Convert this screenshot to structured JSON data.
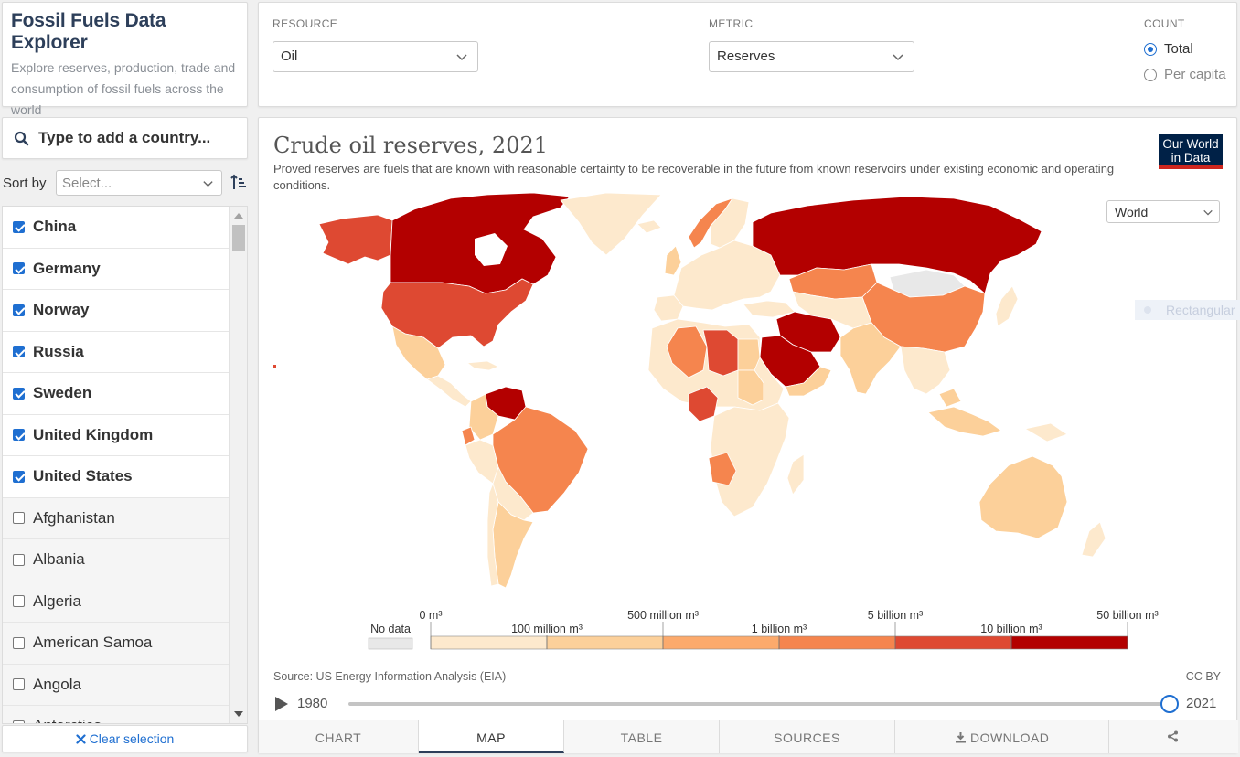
{
  "header": {
    "title": "Fossil Fuels Data Explorer",
    "subtitle": "Explore reserves, production, trade and consumption of fossil fuels across the world"
  },
  "controls": {
    "resource": {
      "label": "RESOURCE",
      "value": "Oil"
    },
    "metric": {
      "label": "METRIC",
      "value": "Reserves"
    },
    "count": {
      "label": "COUNT",
      "options": [
        "Total",
        "Per capita"
      ],
      "selected": "Total"
    }
  },
  "sidebar": {
    "search_placeholder": "Type to add a country...",
    "sort_label": "Sort by",
    "sort_placeholder": "Select...",
    "countries": [
      {
        "name": "China",
        "checked": true
      },
      {
        "name": "Germany",
        "checked": true
      },
      {
        "name": "Norway",
        "checked": true
      },
      {
        "name": "Russia",
        "checked": true
      },
      {
        "name": "Sweden",
        "checked": true
      },
      {
        "name": "United Kingdom",
        "checked": true
      },
      {
        "name": "United States",
        "checked": true
      },
      {
        "name": "Afghanistan",
        "checked": false
      },
      {
        "name": "Albania",
        "checked": false
      },
      {
        "name": "Algeria",
        "checked": false
      },
      {
        "name": "American Samoa",
        "checked": false
      },
      {
        "name": "Angola",
        "checked": false
      },
      {
        "name": "Antarctica",
        "checked": false
      }
    ],
    "clear_label": "Clear selection"
  },
  "chart": {
    "title": "Crude oil reserves, 2021",
    "subtitle": "Proved reserves are fuels that are known with reasonable certainty to be recoverable in the future from known reservoirs under existing economic and operating conditions.",
    "logo_line1": "Our World",
    "logo_line2": "in Data",
    "region": "World",
    "projection_hint": "Rectangular",
    "source": "Source: US Energy Information Analysis (EIA)",
    "license": "CC BY",
    "timeline": {
      "start_year": "1980",
      "end_year": "2021",
      "position": 1.0
    },
    "tabs": [
      "CHART",
      "MAP",
      "TABLE",
      "SOURCES",
      "DOWNLOAD"
    ],
    "active_tab": "MAP"
  },
  "legend": {
    "no_data_label": "No data",
    "no_data_color": "#e8e8e8",
    "bins": [
      {
        "label": "0 m³",
        "color": "#fde9cd"
      },
      {
        "label": "100 million m³",
        "color": "#fcd09a"
      },
      {
        "label": "500 million m³",
        "color": "#fcaa6c"
      },
      {
        "label": "1 billion m³",
        "color": "#f5854e"
      },
      {
        "label": "5 billion m³",
        "color": "#de4932"
      },
      {
        "label": "10 billion m³",
        "color": "#b30000"
      }
    ],
    "end_label": "50 billion m³"
  },
  "colors": {
    "accent": "#1f6fd1",
    "navy": "#2d3f5a",
    "owid_bg": "#002147",
    "owid_red": "#ce261e"
  }
}
